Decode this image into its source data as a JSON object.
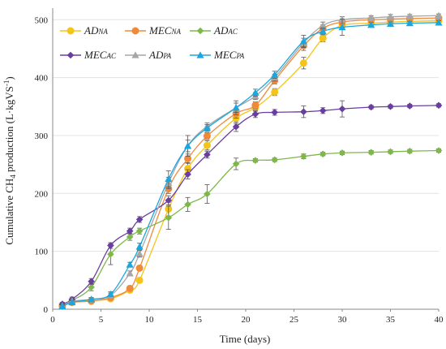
{
  "chart_data": {
    "type": "line",
    "xlabel": "Time (days)",
    "ylabel_parts": [
      "Cumulative CH",
      "4",
      " production (L·kgVS",
      "-1",
      ")"
    ],
    "xlim": [
      0,
      40
    ],
    "ylim": [
      0,
      520
    ],
    "x_ticks": [
      0,
      5,
      10,
      15,
      20,
      25,
      30,
      35,
      40
    ],
    "y_ticks": [
      0,
      100,
      200,
      300,
      400,
      500
    ],
    "grid": "horizontal",
    "legend_position": "top-left",
    "series": [
      {
        "name": "ADNA",
        "label_main": "AD",
        "label_sub": "NA",
        "color": "#F5C41A",
        "marker": "circle",
        "x": [
          1,
          2,
          4,
          6,
          8,
          9,
          12,
          14,
          16,
          19,
          21,
          23,
          26,
          28,
          30,
          33,
          35,
          37,
          40
        ],
        "y": [
          5,
          12,
          15,
          18,
          33,
          50,
          173,
          243,
          283,
          330,
          348,
          375,
          425,
          468,
          490,
          494,
          496,
          497,
          498
        ],
        "err": [
          3,
          3,
          3,
          3,
          3,
          4,
          12,
          10,
          8,
          10,
          6,
          6,
          10,
          6,
          4,
          3,
          3,
          3,
          3
        ]
      },
      {
        "name": "MECNA",
        "label_main": "MEC",
        "label_sub": "NA",
        "color": "#EF8A3A",
        "marker": "circle",
        "x": [
          1,
          2,
          4,
          6,
          8,
          9,
          12,
          14,
          16,
          19,
          21,
          23,
          26,
          28,
          30,
          33,
          35,
          37,
          40
        ],
        "y": [
          6,
          12,
          14,
          20,
          36,
          71,
          208,
          260,
          299,
          338,
          352,
          395,
          455,
          485,
          496,
          500,
          501,
          502,
          503
        ],
        "err": [
          3,
          3,
          3,
          3,
          3,
          4,
          8,
          8,
          6,
          8,
          6,
          6,
          8,
          6,
          5,
          3,
          3,
          3,
          3
        ]
      },
      {
        "name": "ADAC",
        "label_main": "AD",
        "label_sub": "AC",
        "color": "#7FB84A",
        "marker": "diamond",
        "x": [
          1,
          2,
          4,
          6,
          8,
          9,
          12,
          14,
          16,
          19,
          21,
          23,
          26,
          28,
          30,
          33,
          35,
          37,
          40
        ],
        "y": [
          8,
          15,
          38,
          95,
          125,
          135,
          158,
          181,
          199,
          251,
          257,
          258,
          264,
          268,
          270,
          271,
          272,
          273,
          274
        ],
        "err": [
          3,
          4,
          6,
          18,
          6,
          5,
          20,
          12,
          16,
          10,
          3,
          3,
          4,
          3,
          3,
          3,
          3,
          3,
          3
        ]
      },
      {
        "name": "MECAC",
        "label_main": "MEC",
        "label_sub": "AC",
        "color": "#6A3DA0",
        "marker": "diamond",
        "x": [
          1,
          2,
          4,
          6,
          8,
          9,
          12,
          14,
          16,
          19,
          21,
          23,
          26,
          28,
          30,
          33,
          35,
          37,
          40
        ],
        "y": [
          9,
          17,
          48,
          110,
          135,
          155,
          188,
          233,
          267,
          315,
          337,
          340,
          341,
          343,
          346,
          349,
          350,
          351,
          352
        ],
        "err": [
          3,
          4,
          5,
          5,
          5,
          5,
          8,
          8,
          6,
          8,
          6,
          5,
          10,
          5,
          14,
          3,
          3,
          3,
          3
        ]
      },
      {
        "name": "ADPA",
        "label_main": "AD",
        "label_sub": "PA",
        "color": "#A6A6A6",
        "marker": "triangle",
        "x": [
          1,
          2,
          4,
          6,
          8,
          9,
          12,
          14,
          16,
          19,
          21,
          23,
          26,
          28,
          30,
          33,
          35,
          37,
          40
        ],
        "y": [
          6,
          14,
          17,
          24,
          62,
          96,
          218,
          282,
          316,
          348,
          368,
          400,
          460,
          490,
          500,
          503,
          505,
          506,
          507
        ],
        "err": [
          3,
          3,
          3,
          4,
          4,
          6,
          10,
          10,
          6,
          8,
          6,
          6,
          8,
          6,
          5,
          4,
          4,
          3,
          3
        ]
      },
      {
        "name": "MECPA",
        "label_main": "MEC",
        "label_sub": "PA",
        "color": "#1AA7E0",
        "marker": "triangle",
        "x": [
          1,
          2,
          4,
          6,
          8,
          9,
          12,
          14,
          16,
          19,
          21,
          23,
          26,
          28,
          30,
          33,
          35,
          37,
          40
        ],
        "y": [
          5,
          12,
          17,
          26,
          77,
          108,
          225,
          282,
          313,
          348,
          374,
          405,
          463,
          480,
          487,
          491,
          493,
          494,
          495
        ],
        "err": [
          3,
          3,
          3,
          4,
          4,
          6,
          14,
          18,
          6,
          12,
          6,
          6,
          10,
          6,
          14,
          4,
          3,
          3,
          3
        ]
      }
    ]
  }
}
